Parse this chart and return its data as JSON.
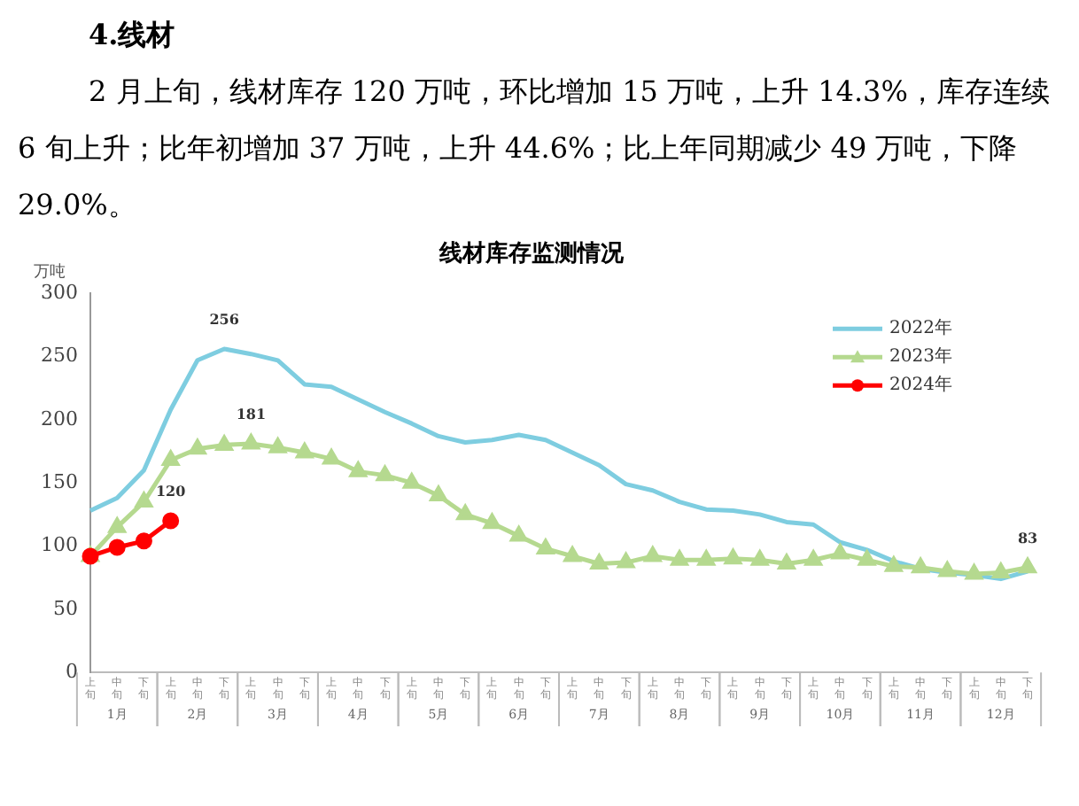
{
  "chart_data": {
    "type": "line",
    "title": "线材库存监测情况",
    "ylabel": "万吨",
    "categories": [
      "上旬",
      "中旬",
      "下旬",
      "上旬",
      "中旬",
      "下旬",
      "上旬",
      "中旬",
      "下旬",
      "上旬",
      "中旬",
      "下旬",
      "上旬",
      "中旬",
      "下旬",
      "上旬",
      "中旬",
      "下旬",
      "上旬",
      "中旬",
      "下旬",
      "上旬",
      "中旬",
      "下旬",
      "上旬",
      "中旬",
      "下旬",
      "上旬",
      "中旬",
      "下旬",
      "上旬",
      "中旬",
      "下旬",
      "上旬",
      "中旬",
      "下旬"
    ],
    "series": [
      {
        "name": "2022年",
        "color": "#7ecde0",
        "marker": "none",
        "values": [
          128,
          138,
          160,
          208,
          247,
          256,
          252,
          247,
          228,
          226,
          216,
          206,
          197,
          187,
          182,
          184,
          188,
          184,
          174,
          164,
          149,
          144,
          135,
          129,
          128,
          125,
          119,
          117,
          103,
          97,
          88,
          82,
          79,
          77,
          74,
          80
        ],
        "value_labels": [
          null,
          null,
          null,
          null,
          null,
          "256",
          null,
          null,
          null,
          null,
          null,
          null,
          null,
          null,
          null,
          null,
          null,
          null,
          null,
          null,
          null,
          null,
          null,
          null,
          null,
          null,
          null,
          null,
          null,
          null,
          null,
          null,
          null,
          null,
          null,
          null
        ]
      },
      {
        "name": "2023年",
        "color": "#b5d98f",
        "marker": "triangle",
        "values": [
          92,
          115,
          135,
          168,
          177,
          180,
          181,
          178,
          174,
          169,
          159,
          156,
          150,
          140,
          125,
          118,
          108,
          98,
          92,
          86,
          87,
          92,
          89,
          89,
          90,
          89,
          86,
          89,
          94,
          89,
          84,
          83,
          80,
          78,
          79,
          83
        ],
        "value_labels": [
          null,
          null,
          null,
          null,
          null,
          null,
          "181",
          null,
          null,
          null,
          null,
          null,
          null,
          null,
          null,
          null,
          null,
          null,
          null,
          null,
          null,
          null,
          null,
          null,
          null,
          null,
          null,
          null,
          null,
          null,
          null,
          null,
          null,
          null,
          null,
          "83"
        ]
      },
      {
        "name": "2024年",
        "color": "#ff0000",
        "marker": "circle",
        "values": [
          92,
          99,
          104,
          120,
          null,
          null,
          null,
          null,
          null,
          null,
          null,
          null,
          null,
          null,
          null,
          null,
          null,
          null,
          null,
          null,
          null,
          null,
          null,
          null,
          null,
          null,
          null,
          null,
          null,
          null,
          null,
          null,
          null,
          null,
          null,
          null
        ],
        "value_labels": [
          null,
          null,
          null,
          "120",
          null,
          null,
          null,
          null,
          null,
          null,
          null,
          null,
          null,
          null,
          null,
          null,
          null,
          null,
          null,
          null,
          null,
          null,
          null,
          null,
          null,
          null,
          null,
          null,
          null,
          null,
          null,
          null,
          null,
          null,
          null,
          null
        ]
      }
    ],
    "ylim": [
      0,
      300
    ],
    "yticks": [
      0,
      50,
      100,
      150,
      200,
      250,
      300
    ],
    "grid": false,
    "legend": "top right",
    "annotations": [
      "4.线材",
      "2 月上旬，线材库存 120 万吨，环比增加 15 万吨，上升 14.3%，库存连续 6 旬上升；比年初增加 37 万吨，上升 44.6%；比上年同期减少 49 万吨，下降 29.0%。",
      "1月",
      "2月",
      "3月",
      "4月",
      "5月",
      "6月",
      "7月",
      "8月",
      "9月",
      "10月",
      "11月",
      "12月"
    ]
  }
}
